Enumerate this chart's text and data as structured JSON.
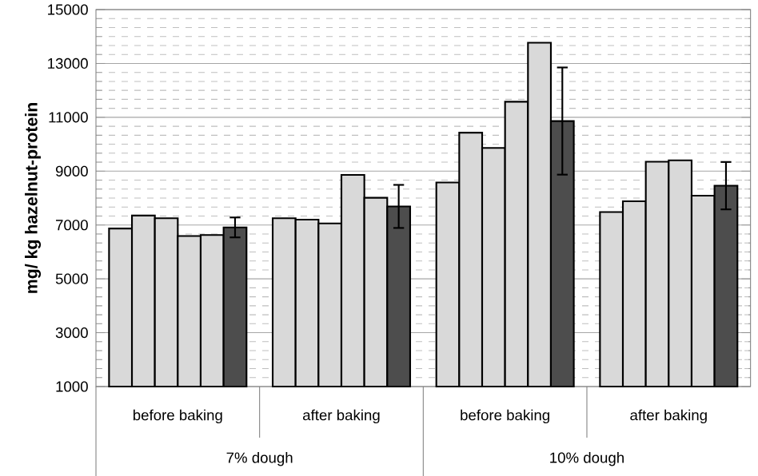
{
  "chart_data": {
    "type": "bar",
    "ylabel": "mg/ kg hazelnut-protein",
    "categories": [
      "before baking",
      "after baking",
      "before baking",
      "after baking"
    ],
    "series": [
      {
        "color": "#d9d9d9",
        "values": [
          6870,
          7250,
          8580,
          7480
        ]
      },
      {
        "color": "#d9d9d9",
        "values": [
          7350,
          7200,
          10430,
          7880
        ]
      },
      {
        "color": "#d9d9d9",
        "values": [
          7250,
          7060,
          9860,
          9350
        ]
      },
      {
        "color": "#d9d9d9",
        "values": [
          6590,
          8860,
          11580,
          9400
        ]
      },
      {
        "color": "#d9d9d9",
        "values": [
          6630,
          8010,
          13770,
          8090
        ]
      },
      {
        "color": "#4d4d4d",
        "values": [
          6910,
          7690,
          10860,
          8460
        ],
        "errors": [
          370,
          800,
          1990,
          880
        ]
      }
    ],
    "annotations": [
      "7% dough",
      "10% dough"
    ],
    "ylim": [
      1000,
      15000
    ],
    "yticks": [
      1000,
      3000,
      5000,
      7000,
      9000,
      11000,
      13000,
      15000
    ],
    "grid": "y"
  }
}
